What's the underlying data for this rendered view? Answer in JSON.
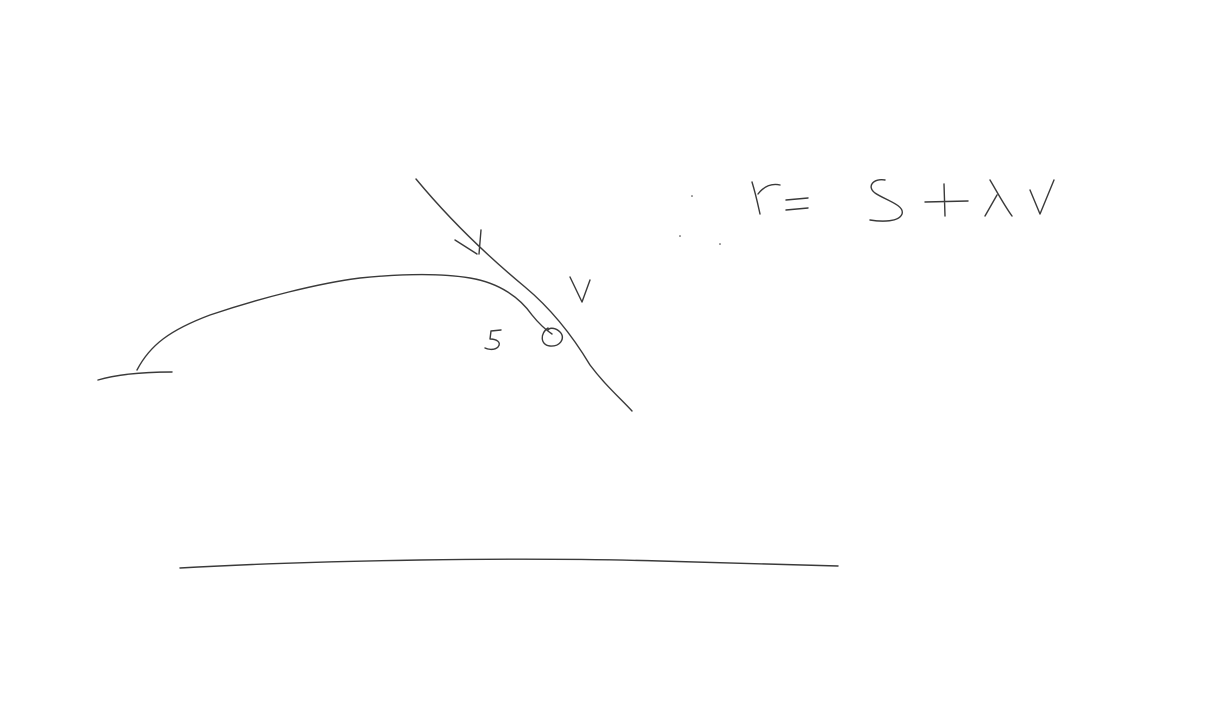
{
  "canvas": {
    "background": "#ffffff",
    "ink_color": "#3a3a3a"
  },
  "labels": {
    "vector_v_top": "v",
    "vector_v_side": "v",
    "point_s": "s",
    "equation": "r= s+λv"
  }
}
